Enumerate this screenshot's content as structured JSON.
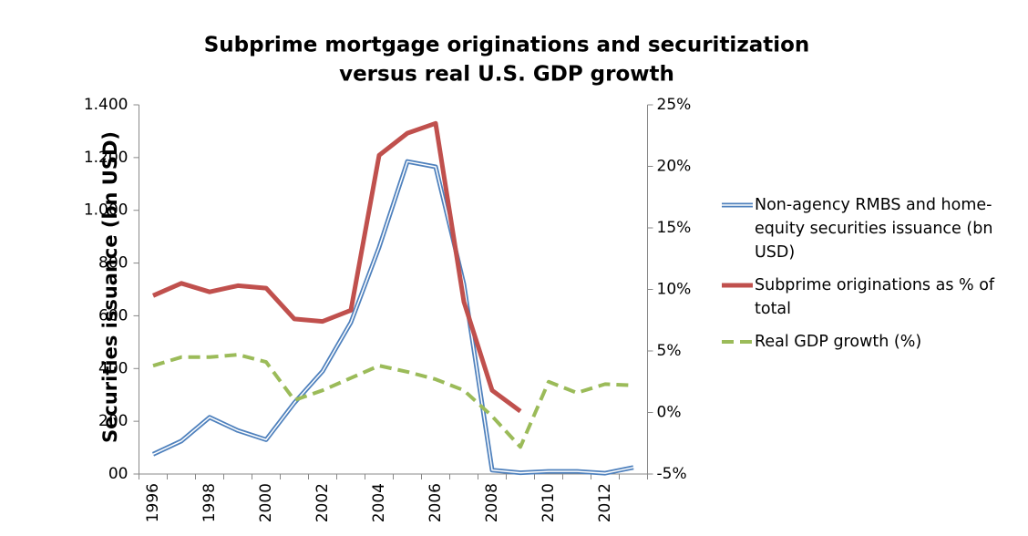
{
  "chart_data": {
    "type": "line",
    "title": "Subprime mortgage originations and securitization versus real U.S. GDP growth",
    "title_lines": [
      "Subprime mortgage originations and securitization",
      "versus real U.S. GDP growth"
    ],
    "y_label": "Securities issuance (bn USD)",
    "categories": [
      "1996",
      null,
      "1998",
      null,
      "2000",
      null,
      "2002",
      null,
      "2004",
      null,
      "2006",
      null,
      "2008",
      null,
      "2010",
      null,
      "2012",
      null
    ],
    "series": [
      {
        "name": "Non-agency RMBS and home-equity securities issuance (bn USD)",
        "color": "#4f81bd",
        "style": "double",
        "values": [
          75,
          125,
          215,
          165,
          130,
          270,
          390,
          575,
          860,
          1185,
          1165,
          720,
          15,
          5,
          10,
          10,
          3,
          25
        ]
      },
      {
        "name": "Subprime originations as % of total",
        "color": "#c0504d",
        "axis": "y2",
        "style": "solid",
        "values": [
          9.5,
          10.5,
          9.8,
          10.3,
          10.1,
          7.6,
          7.4,
          8.3,
          20.9,
          22.7,
          23.5,
          9,
          1.8,
          0.1,
          null,
          null,
          null,
          null
        ]
      },
      {
        "name": "Real GDP growth (%)",
        "color": "#9bbb59",
        "axis": "y2",
        "style": "dashed",
        "values": [
          3.8,
          4.5,
          4.5,
          4.7,
          4.1,
          1.0,
          1.8,
          2.8,
          3.8,
          3.3,
          2.7,
          1.8,
          -0.3,
          -2.8,
          2.5,
          1.6,
          2.3,
          2.2
        ]
      }
    ],
    "ylim": [
      0,
      1400
    ],
    "yticks": [
      {
        "value": 0,
        "label": "00"
      },
      200,
      400,
      600,
      800,
      {
        "value": 1000,
        "label": "1.000"
      },
      {
        "value": 1200,
        "label": "1.200"
      },
      {
        "value": 1400,
        "label": "1.400"
      }
    ],
    "y2lim": [
      -5,
      25
    ],
    "y2ticks": [
      {
        "value": -5,
        "label": "-5%"
      },
      {
        "value": 0,
        "label": "0%"
      },
      {
        "value": 5,
        "label": "5%"
      },
      {
        "value": 10,
        "label": "10%"
      },
      {
        "value": 15,
        "label": "15%"
      },
      {
        "value": 20,
        "label": "20%"
      },
      {
        "value": 25,
        "label": "25%"
      }
    ],
    "grid": false,
    "legend": "right"
  }
}
